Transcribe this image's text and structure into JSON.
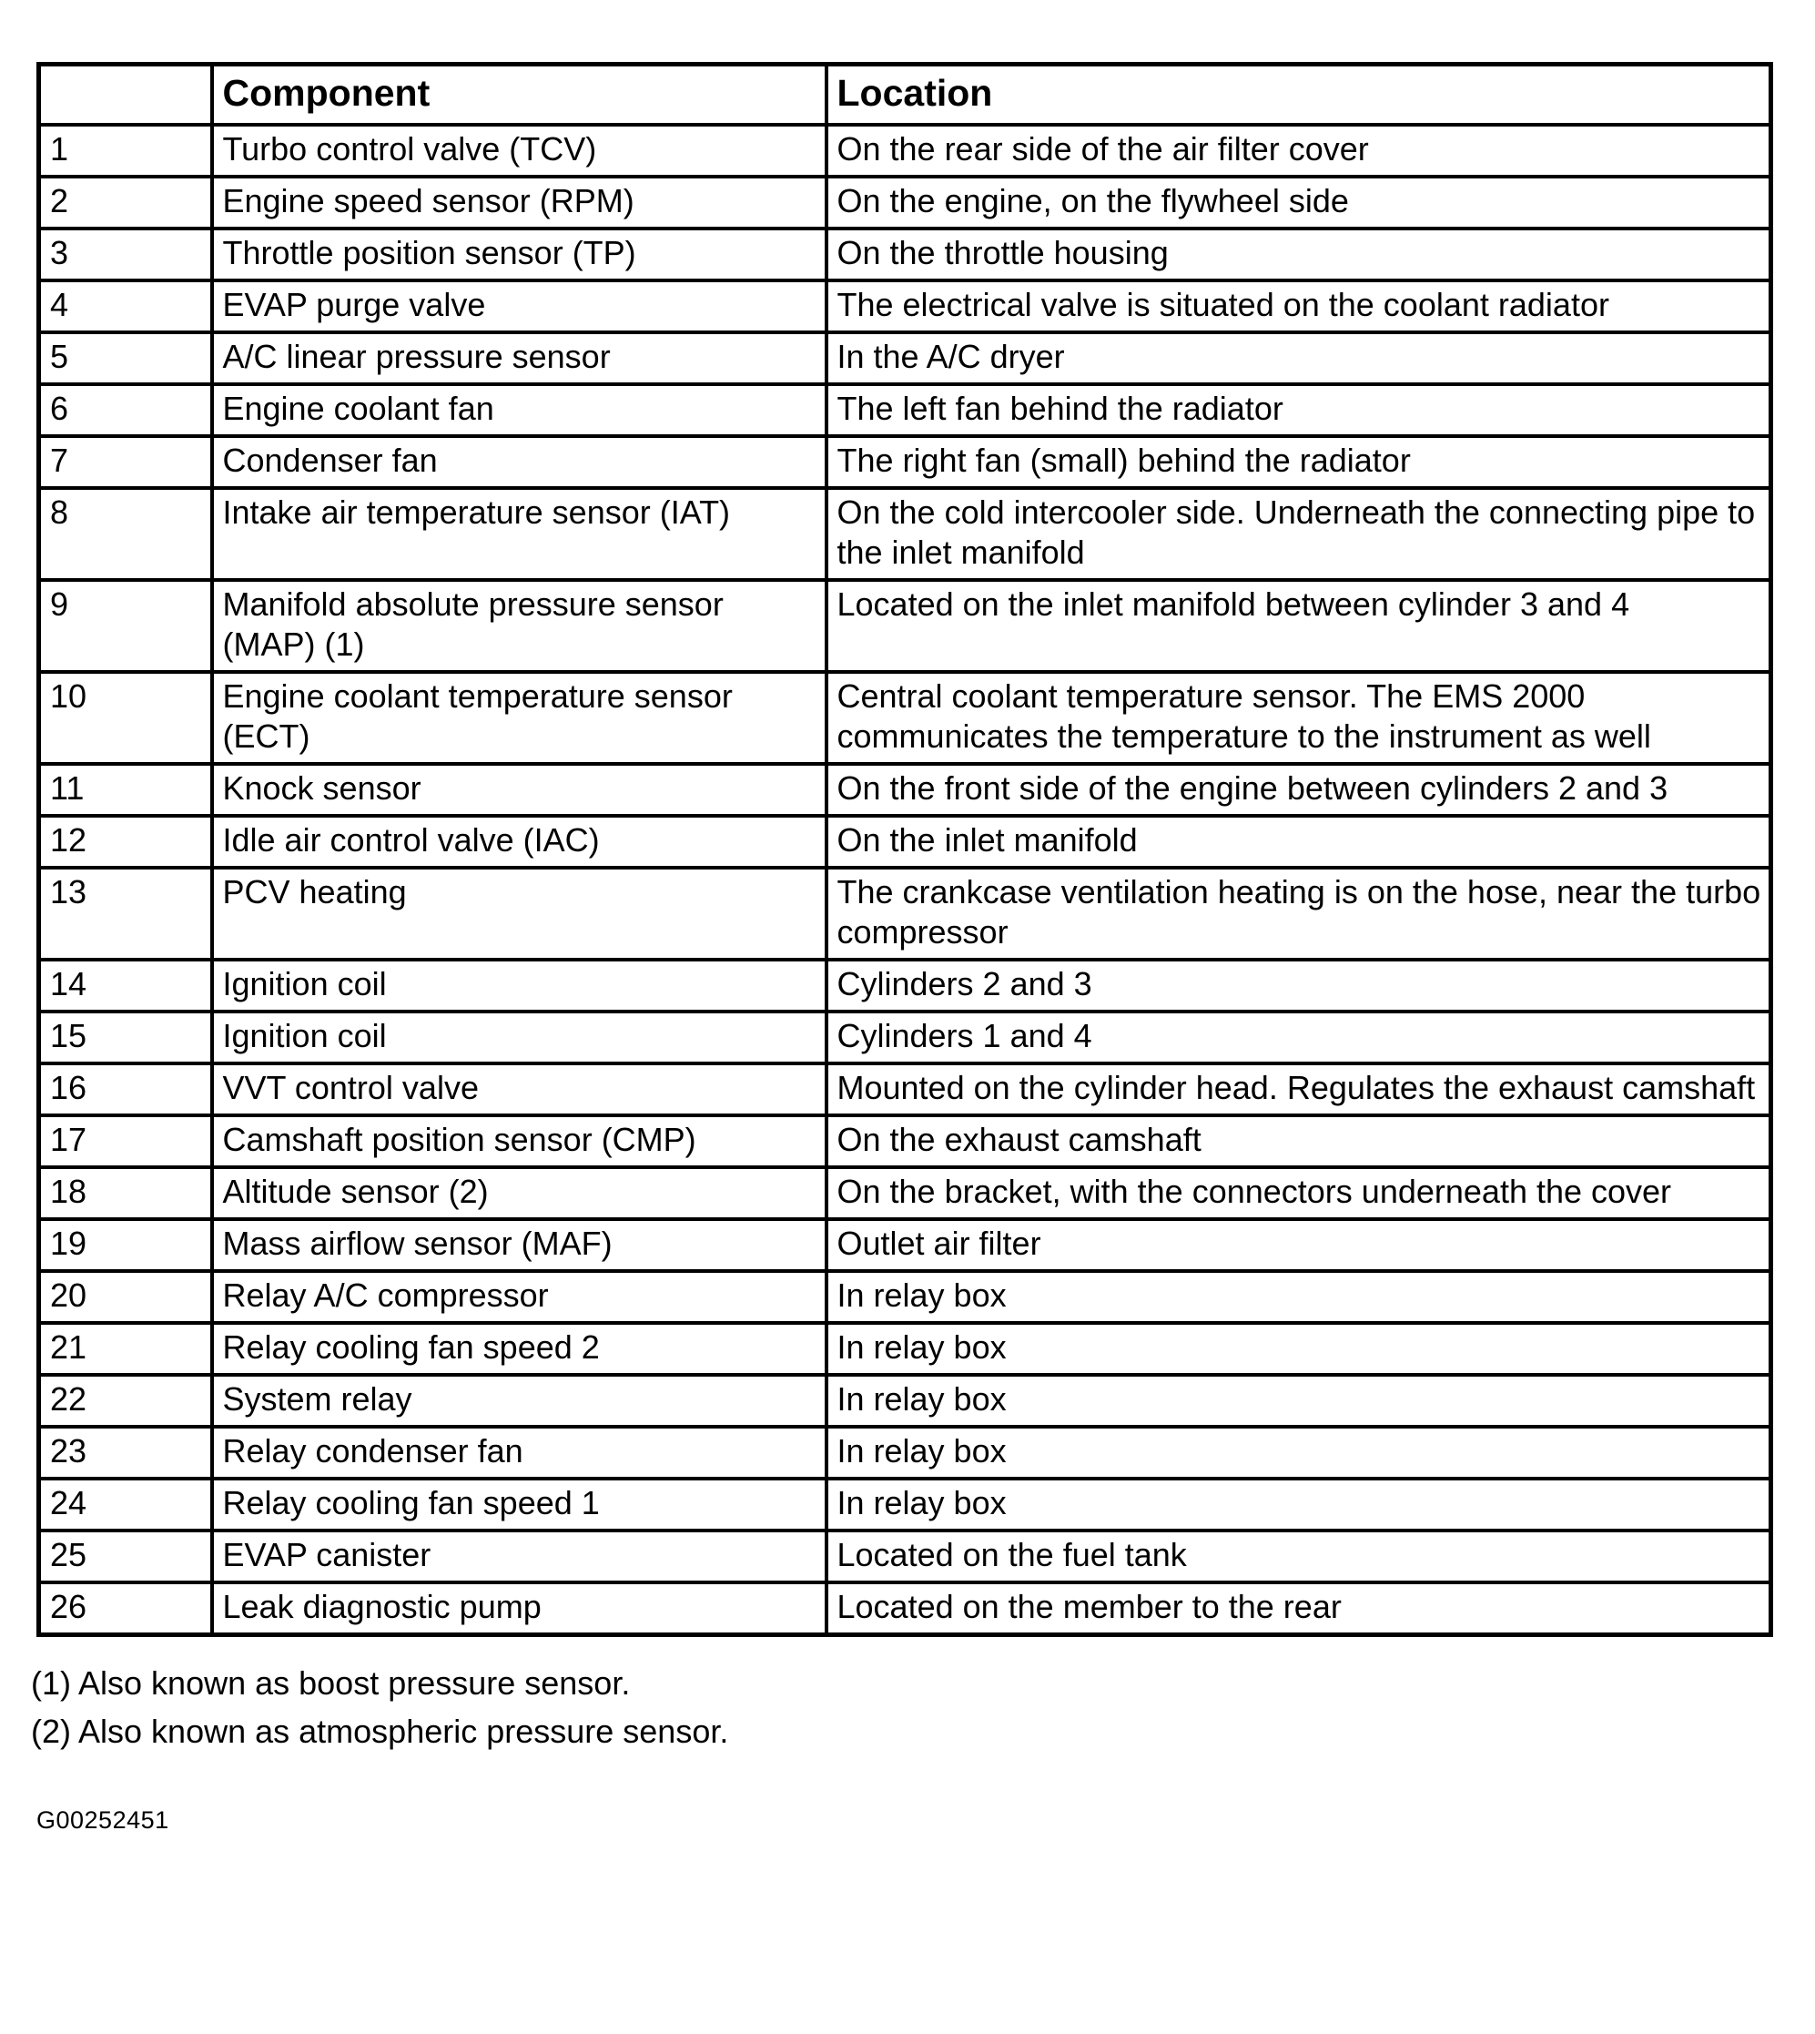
{
  "colors": {
    "background": "#ffffff",
    "border": "#000000",
    "text": "#000000"
  },
  "table": {
    "headers": {
      "num": "",
      "component": "Component",
      "location": "Location"
    },
    "rows": [
      {
        "num": "1",
        "component": "Turbo control valve (TCV)",
        "location": "On the rear side of the air filter cover"
      },
      {
        "num": "2",
        "component": "Engine speed sensor (RPM)",
        "location": "On the engine, on the flywheel side"
      },
      {
        "num": "3",
        "component": "Throttle position sensor (TP)",
        "location": "On the throttle housing"
      },
      {
        "num": "4",
        "component": "EVAP purge valve",
        "location": "The electrical valve is situated on the coolant radiator"
      },
      {
        "num": "5",
        "component": "A/C linear pressure sensor",
        "location": "In the A/C dryer"
      },
      {
        "num": "6",
        "component": "Engine coolant fan",
        "location": "The left fan behind the radiator"
      },
      {
        "num": "7",
        "component": "Condenser fan",
        "location": "The right fan (small) behind the radiator"
      },
      {
        "num": "8",
        "component": "Intake air temperature sensor (IAT)",
        "location": "On the cold intercooler side. Underneath the connecting pipe to the inlet manifold"
      },
      {
        "num": "9",
        "component": "Manifold absolute pressure sensor (MAP) (1)",
        "location": "Located on the inlet manifold between cylinder 3 and 4"
      },
      {
        "num": "10",
        "component": "Engine coolant temperature sensor (ECT)",
        "location": "Central coolant temperature sensor. The EMS 2000 communicates the temperature to the instrument as well"
      },
      {
        "num": "11",
        "component": "Knock sensor",
        "location": "On the front side of the engine between cylinders 2 and 3"
      },
      {
        "num": "12",
        "component": "Idle air control valve (IAC)",
        "location": "On the inlet manifold"
      },
      {
        "num": "13",
        "component": "PCV heating",
        "location": "The crankcase ventilation heating is on the hose, near the turbo compressor"
      },
      {
        "num": "14",
        "component": "Ignition coil",
        "location": "Cylinders 2 and 3"
      },
      {
        "num": "15",
        "component": "Ignition coil",
        "location": "Cylinders 1 and 4"
      },
      {
        "num": "16",
        "component": "VVT control valve",
        "location": "Mounted on the cylinder head. Regulates the exhaust camshaft"
      },
      {
        "num": "17",
        "component": "Camshaft position sensor (CMP)",
        "location": "On the exhaust camshaft"
      },
      {
        "num": "18",
        "component": "Altitude sensor (2)",
        "location": "On the bracket, with the connectors underneath the cover"
      },
      {
        "num": "19",
        "component": "Mass airflow sensor (MAF)",
        "location": "Outlet air filter"
      },
      {
        "num": "20",
        "component": "Relay A/C compressor",
        "location": "In relay box"
      },
      {
        "num": "21",
        "component": "Relay cooling fan speed 2",
        "location": "In relay box"
      },
      {
        "num": "22",
        "component": "System relay",
        "location": "In relay box"
      },
      {
        "num": "23",
        "component": "Relay condenser fan",
        "location": "In relay box"
      },
      {
        "num": "24",
        "component": "Relay cooling fan speed 1",
        "location": "In relay box"
      },
      {
        "num": "25",
        "component": "EVAP canister",
        "location": "Located on the fuel tank"
      },
      {
        "num": "26",
        "component": "Leak diagnostic pump",
        "location": "Located on the member to the rear"
      }
    ]
  },
  "footnotes": [
    "(1) Also known as boost pressure sensor.",
    "(2) Also known as atmospheric pressure sensor."
  ],
  "figure_code": "G00252451"
}
